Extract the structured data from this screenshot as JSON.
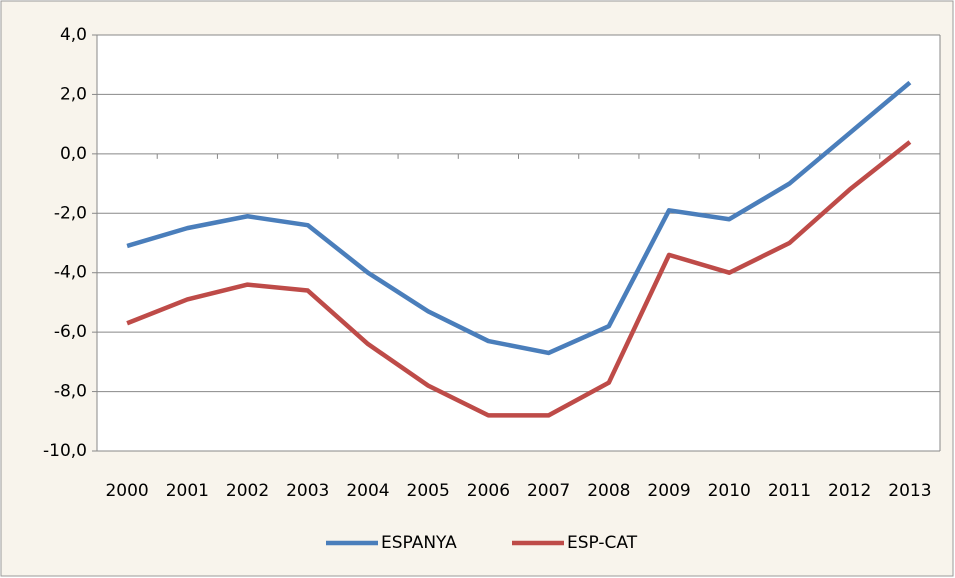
{
  "chart_data": {
    "type": "line",
    "categories": [
      "2000",
      "2001",
      "2002",
      "2003",
      "2004",
      "2005",
      "2006",
      "2007",
      "2008",
      "2009",
      "2010",
      "2011",
      "2012",
      "2013"
    ],
    "series": [
      {
        "name": "ESPANYA",
        "color": "#4a7ebb",
        "values": [
          -3.1,
          -2.5,
          -2.1,
          -2.4,
          -4.0,
          -5.3,
          -6.3,
          -6.7,
          -5.8,
          -1.9,
          -2.2,
          -1.0,
          0.7,
          2.4
        ]
      },
      {
        "name": "ESP-CAT",
        "color": "#be4b48",
        "values": [
          -5.7,
          -4.9,
          -4.4,
          -4.6,
          -6.4,
          -7.8,
          -8.8,
          -8.8,
          -7.7,
          -3.4,
          -4.0,
          -3.0,
          -1.2,
          0.4
        ]
      }
    ],
    "ylim": [
      -10,
      4
    ],
    "yticks": [
      {
        "value": -10,
        "label": "-10,0"
      },
      {
        "value": -8,
        "label": "-8,0"
      },
      {
        "value": -6,
        "label": "-6,0"
      },
      {
        "value": -4,
        "label": "-4,0"
      },
      {
        "value": -2,
        "label": "-2,0"
      },
      {
        "value": 0,
        "label": "0,0"
      },
      {
        "value": 2,
        "label": "2,0"
      },
      {
        "value": 4,
        "label": "4,0"
      }
    ],
    "grid": true,
    "legend": "bottom"
  }
}
